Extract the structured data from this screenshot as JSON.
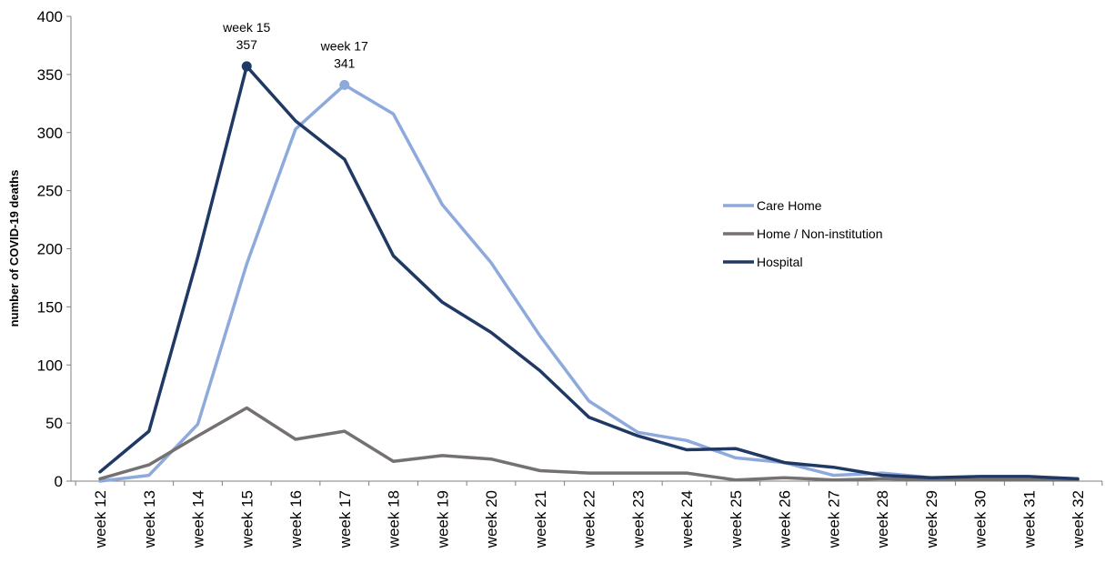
{
  "chart_data": {
    "type": "line",
    "title": "",
    "xlabel": "",
    "ylabel": "number of COVID-19 deaths",
    "ylim": [
      0,
      400
    ],
    "yticks": [
      0,
      50,
      100,
      150,
      200,
      250,
      300,
      350,
      400
    ],
    "grid": false,
    "legend_placement": "right",
    "categories": [
      "week 12",
      "week 13",
      "week 14",
      "week 15",
      "week 16",
      "week 17",
      "week 18",
      "week 19",
      "week 20",
      "week 21",
      "week 22",
      "week 23",
      "week 24",
      "week 25",
      "week 26",
      "week 27",
      "week 28",
      "week 29",
      "week 30",
      "week 31",
      "week 32"
    ],
    "series": [
      {
        "name": "Care Home",
        "color": "#8EA9DB",
        "values": [
          0,
          5,
          49,
          187,
          303,
          341,
          316,
          238,
          188,
          125,
          69,
          42,
          35,
          20,
          16,
          5,
          7,
          3,
          3,
          2,
          1
        ]
      },
      {
        "name": "Home / Non-institution",
        "color": "#767171",
        "values": [
          2,
          14,
          39,
          63,
          36,
          43,
          17,
          22,
          19,
          9,
          7,
          7,
          7,
          1,
          3,
          1,
          2,
          1,
          1,
          1,
          1
        ]
      },
      {
        "name": "Hospital",
        "color": "#203864",
        "values": [
          8,
          43,
          193,
          357,
          310,
          277,
          194,
          154,
          128,
          95,
          55,
          39,
          27,
          28,
          16,
          12,
          5,
          3,
          4,
          4,
          2
        ]
      }
    ],
    "annotations": [
      {
        "series": 2,
        "index": 3,
        "line1": "week 15",
        "line2": "357"
      },
      {
        "series": 0,
        "index": 5,
        "line1": "week 17",
        "line2": "341"
      }
    ]
  }
}
